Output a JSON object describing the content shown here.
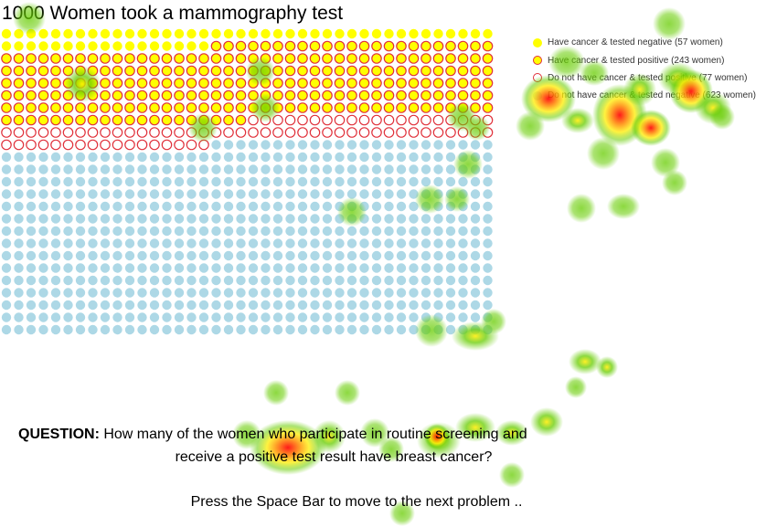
{
  "question": {
    "label": "QUESTION:",
    "line1": " How many of the women who participate in routine screening and",
    "line2": "receive a positive test result have breast cancer?"
  },
  "instruction": "Press the Space Bar to move to the next problem ..",
  "colors": {
    "yellow_fill": "#ffff00",
    "positive_stroke": "#e0303a",
    "negative_fill": "#add8e6",
    "heat_green": "#66cc00",
    "heat_yellow": "#ffee00",
    "heat_red": "#ff0000"
  },
  "chart_data": {
    "type": "icon-array",
    "title": "1000 Women took a mammography test",
    "total": 1000,
    "columns": 40,
    "rows": 25,
    "categories": [
      {
        "label": "Have cancer & tested negative (57 women)",
        "count": 57,
        "style": "yellow-fill"
      },
      {
        "label": "Have cancer & tested positive (243 women)",
        "count": 243,
        "style": "yellow-fill-red-ring"
      },
      {
        "label": "Do not have cancer & tested positive (77 women)",
        "count": 77,
        "style": "white-fill-red-ring"
      },
      {
        "label": "Do not have cancer & tested negative (623 women)",
        "count": 623,
        "style": "blue-fill"
      }
    ],
    "legend_position": "top-right"
  }
}
